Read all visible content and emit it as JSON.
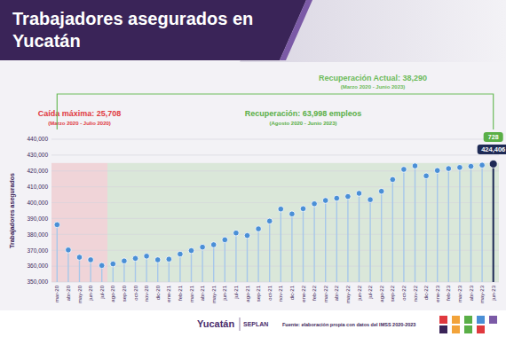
{
  "chart_data": {
    "type": "lollipop",
    "title": "Trabajadores asegurados en Yucatán",
    "y_label": "Trabajadores asegurados",
    "categories": [
      "mar-20",
      "abr-20",
      "may-20",
      "jun-20",
      "jul-20",
      "ago-20",
      "sep-20",
      "oct-20",
      "nov-20",
      "dic-20",
      "ene-21",
      "feb-21",
      "mar-21",
      "abr-21",
      "may-21",
      "jun-21",
      "jul-21",
      "ago-21",
      "sep-21",
      "oct-21",
      "nov-21",
      "dic-21",
      "ene-22",
      "feb-22",
      "mar-22",
      "abr-22",
      "may-22",
      "jun-22",
      "jul-22",
      "ago-22",
      "sep-22",
      "oct-22",
      "nov-22",
      "dic-22",
      "ene-23",
      "feb-23",
      "mar-23",
      "abr-23",
      "may-23",
      "jun-23"
    ],
    "values": [
      386116,
      370200,
      365600,
      364000,
      360408,
      361400,
      363300,
      364900,
      366300,
      364000,
      364400,
      367600,
      369800,
      372000,
      373500,
      376600,
      380900,
      379300,
      383500,
      388400,
      396000,
      392900,
      396200,
      399300,
      401400,
      402800,
      403900,
      405900,
      401900,
      407200,
      414600,
      421000,
      423200,
      416900,
      420300,
      421500,
      422200,
      422900,
      423678,
      424406
    ],
    "color": "#4a8fd6",
    "ylim": [
      350000,
      440000
    ],
    "yticks": [
      {
        "value": 350000,
        "label": "350,000"
      },
      {
        "value": 360000,
        "label": "360,000"
      },
      {
        "value": 370000,
        "label": "370,000"
      },
      {
        "value": 380000,
        "label": "380,000"
      },
      {
        "value": 390000,
        "label": "390,000"
      },
      {
        "value": 400000,
        "label": "400,000"
      },
      {
        "value": 410000,
        "label": "410,000"
      },
      {
        "value": 420000,
        "label": "420,000"
      },
      {
        "value": 430000,
        "label": "430,000"
      },
      {
        "value": 440000,
        "label": "440,000"
      }
    ],
    "grid": true,
    "annotations": [
      {
        "text": "Caída máxima: 25,708",
        "subtext": "(Marzo 2020 - Julio 2020)",
        "from": "mar-20",
        "to": "jul-20",
        "top": 425000,
        "color": "#e0393e"
      },
      {
        "text": "Recuperación: 63,998 empleos",
        "subtext": "(Agosto 2020 - Junio 2023)",
        "from": "ago-20",
        "to": "jun-23",
        "top": 425000,
        "color": "#5aaf47"
      },
      {
        "text": "Recuperación Actual: 38,290",
        "subtext": "(Marzo 2020 - Junio 2023)",
        "from": "mar-20",
        "to": "jun-23",
        "color": "#6dbb5b"
      }
    ],
    "highlight": {
      "category": "jun-23",
      "label": "424,406",
      "change_label": "728"
    }
  },
  "footer": {
    "logo": "Yucatán",
    "org": "SEPLAN",
    "source": "Fuente: elaboración propia con datos del IMSS 2020-2023"
  }
}
